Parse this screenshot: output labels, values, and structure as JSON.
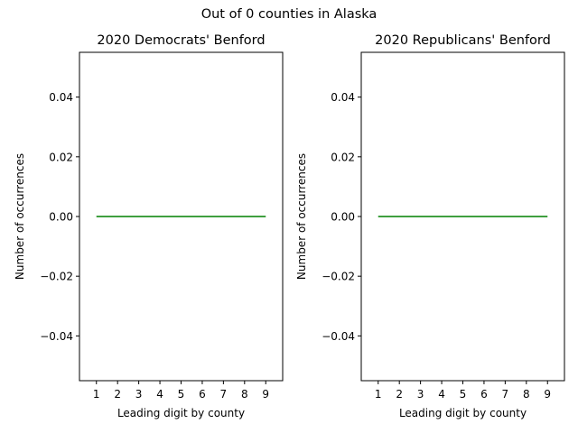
{
  "figure": {
    "suptitle": "Out of 0 counties in Alaska"
  },
  "chart_data": [
    {
      "type": "line",
      "title": "2020 Democrats' Benford",
      "xlabel": "Leading digit by county",
      "ylabel": "Number of occurrences",
      "x": [
        1,
        2,
        3,
        4,
        5,
        6,
        7,
        8,
        9
      ],
      "x_tick_labels": [
        "1",
        "2",
        "3",
        "4",
        "5",
        "6",
        "7",
        "8",
        "9"
      ],
      "y_ticks": [
        -0.04,
        -0.02,
        0.0,
        0.02,
        0.04
      ],
      "y_tick_labels": [
        "−0.04",
        "−0.02",
        "0.00",
        "0.02",
        "0.04"
      ],
      "xlim": [
        0.2,
        9.8
      ],
      "ylim": [
        -0.055,
        0.055
      ],
      "grid": false,
      "series": [
        {
          "values": [
            0,
            0,
            0,
            0,
            0,
            0,
            0,
            0,
            0
          ],
          "color": "#008000"
        }
      ]
    },
    {
      "type": "line",
      "title": "2020 Republicans' Benford",
      "xlabel": "Leading digit by county",
      "ylabel": "Number of occurrences",
      "x": [
        1,
        2,
        3,
        4,
        5,
        6,
        7,
        8,
        9
      ],
      "x_tick_labels": [
        "1",
        "2",
        "3",
        "4",
        "5",
        "6",
        "7",
        "8",
        "9"
      ],
      "y_ticks": [
        -0.04,
        -0.02,
        0.0,
        0.02,
        0.04
      ],
      "y_tick_labels": [
        "−0.04",
        "−0.02",
        "0.00",
        "0.02",
        "0.04"
      ],
      "xlim": [
        0.2,
        9.8
      ],
      "ylim": [
        -0.055,
        0.055
      ],
      "grid": false,
      "series": [
        {
          "values": [
            0,
            0,
            0,
            0,
            0,
            0,
            0,
            0,
            0
          ],
          "color": "#008000"
        }
      ]
    }
  ]
}
